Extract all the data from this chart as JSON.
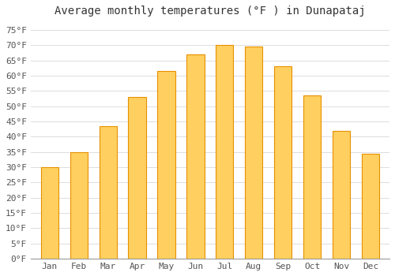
{
  "title": "Average monthly temperatures (°F ) in Dunapataj",
  "months": [
    "Jan",
    "Feb",
    "Mar",
    "Apr",
    "May",
    "Jun",
    "Jul",
    "Aug",
    "Sep",
    "Oct",
    "Nov",
    "Dec"
  ],
  "values": [
    30,
    35,
    43.5,
    53,
    61.5,
    67,
    70,
    69.5,
    63,
    53.5,
    42,
    34.5
  ],
  "bar_color_top": "#FFB800",
  "bar_color_bottom": "#FFD060",
  "bar_edge_color": "#E89000",
  "background_color": "#FFFFFF",
  "grid_color": "#DDDDDD",
  "ylim": [
    0,
    78
  ],
  "yticks": [
    0,
    5,
    10,
    15,
    20,
    25,
    30,
    35,
    40,
    45,
    50,
    55,
    60,
    65,
    70,
    75
  ],
  "title_fontsize": 10,
  "tick_fontsize": 8,
  "font_family": "monospace",
  "bar_width": 0.6
}
